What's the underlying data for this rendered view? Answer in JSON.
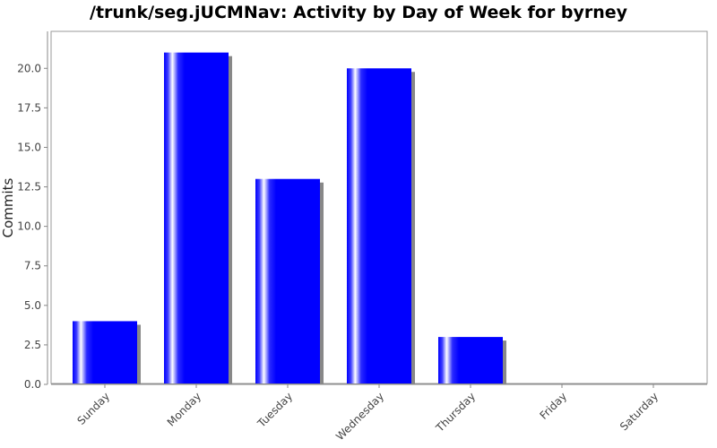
{
  "chart_data": {
    "type": "bar",
    "title": "/trunk/seg.jUCMNav: Activity by Day of Week for byrney",
    "xlabel": "",
    "ylabel": "Commits",
    "categories": [
      "Sunday",
      "Monday",
      "Tuesday",
      "Wednesday",
      "Thursday",
      "Friday",
      "Saturday"
    ],
    "values": [
      4,
      21,
      13,
      20,
      3,
      0,
      0
    ],
    "ylim": [
      0,
      22
    ],
    "yticks": [
      "0.0",
      "2.5",
      "5.0",
      "7.5",
      "10.0",
      "12.5",
      "15.0",
      "17.5",
      "20.0"
    ],
    "ytick_values": [
      0,
      2.5,
      5,
      7.5,
      10,
      12.5,
      15,
      17.5,
      20
    ],
    "grid": false,
    "bar_color": "#0000ff",
    "shadow_color": "#888888",
    "plot_border_color": "#999999"
  }
}
